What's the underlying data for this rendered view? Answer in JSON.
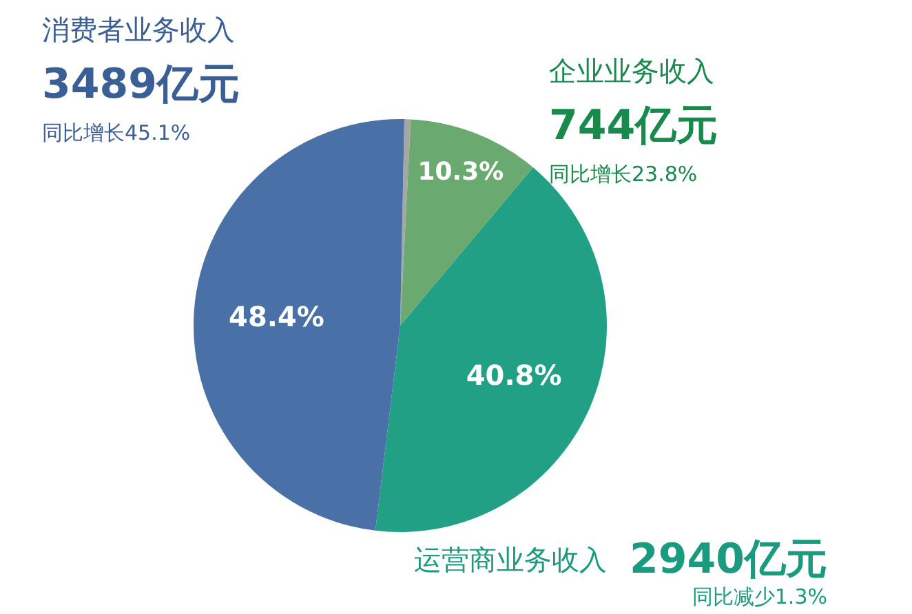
{
  "chart_data": {
    "type": "pie",
    "categories": [
      "消费者业务收入",
      "企业业务收入",
      "运营商业务收入",
      null
    ],
    "values": [
      48.4,
      10.3,
      40.8,
      0.5
    ],
    "colors": [
      "#4a70a8",
      "#6aaa70",
      "#22a085",
      "#a6a6a6"
    ],
    "value_labels": [
      "48.4%",
      "10.3%",
      "40.8%",
      null
    ],
    "annotations": [
      "3489亿元",
      "同比增长45.1%",
      "744亿元",
      "同比增长23.8%",
      "2940亿元",
      "同比减少1.3%"
    ]
  }
}
